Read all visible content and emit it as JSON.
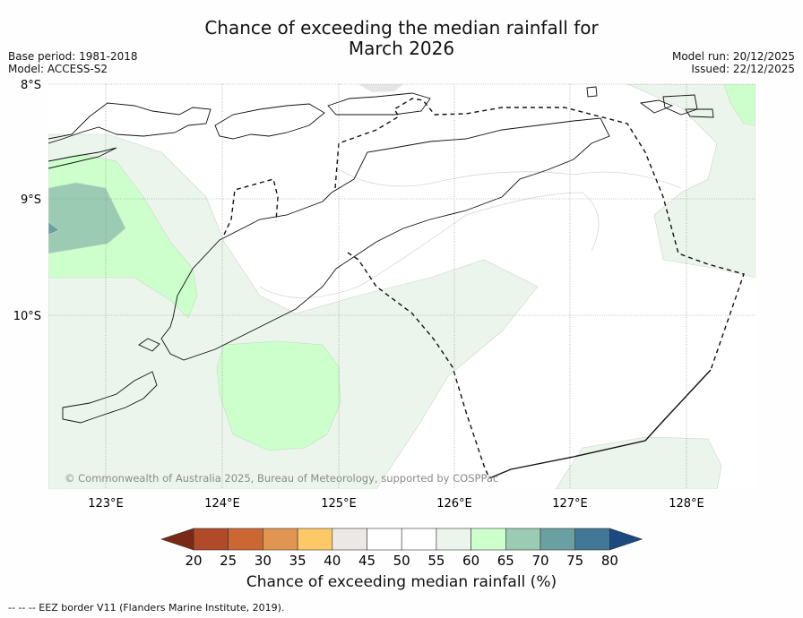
{
  "title": {
    "line1": "Chance of exceeding the median rainfall for",
    "line2": "March 2026"
  },
  "meta": {
    "base_period": "Base period: 1981-2018",
    "model": "Model: ACCESS-S2",
    "model_run": "Model run: 20/12/2025",
    "issued": "Issued: 22/12/2025"
  },
  "map": {
    "lat_labels": [
      "8°S",
      "9°S",
      "10°S"
    ],
    "lon_labels": [
      "123°E",
      "124°E",
      "125°E",
      "126°E",
      "127°E",
      "128°E"
    ],
    "copyright": "© Commonwealth of Australia 2025, Bureau of Meteorology, supported by COSPPac",
    "colors": {
      "land_outline": "#111111",
      "eez": "#111111",
      "grid": "#888888",
      "shade_55_60": "#ebf5eb",
      "shade_60_65": "#ccffcc",
      "shade_65_70": "#9ccbb4",
      "shade_70_75": "#6aa0a2"
    }
  },
  "colorbar": {
    "ticks": [
      "20",
      "25",
      "30",
      "35",
      "40",
      "45",
      "50",
      "55",
      "60",
      "65",
      "70",
      "75",
      "80"
    ],
    "colors": [
      "#7a2a14",
      "#b04a28",
      "#cc6633",
      "#e09650",
      "#fdc966",
      "#ebe8e6",
      "#ffffff",
      "#ffffff",
      "#ebf5eb",
      "#ccffcc",
      "#9ccbb4",
      "#6aa0a2",
      "#417897",
      "#1a4a80"
    ],
    "label": "Chance of exceeding median rainfall (%)"
  },
  "footer": "-- -- -- EEZ border V11 (Flanders Marine Institute, 2019)."
}
